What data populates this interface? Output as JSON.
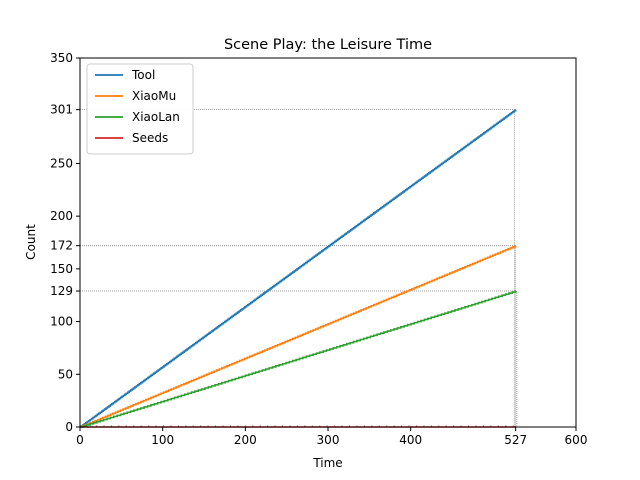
{
  "chart_data": {
    "type": "line",
    "title": "Scene Play: the Leisure Time",
    "xlabel": "Time",
    "ylabel": "Count",
    "xlim": [
      0,
      600
    ],
    "ylim": [
      0,
      350
    ],
    "xticks": [
      0,
      100,
      200,
      300,
      400,
      527,
      600
    ],
    "yticks": [
      0,
      50,
      100,
      129,
      150,
      172,
      200,
      250,
      301,
      350
    ],
    "grid": false,
    "legend_position": "top-left",
    "reference_lines": [
      {
        "y": 301,
        "x_end": 527
      },
      {
        "y": 172,
        "x_end": 527
      },
      {
        "y": 129,
        "x_end": 527
      }
    ],
    "series": [
      {
        "name": "Tool",
        "color": "#1f77b4",
        "x": [
          0,
          527
        ],
        "y": [
          0,
          301
        ],
        "style": "step"
      },
      {
        "name": "XiaoMu",
        "color": "#ff7f0e",
        "x": [
          0,
          527
        ],
        "y": [
          0,
          172
        ],
        "style": "step"
      },
      {
        "name": "XiaoLan",
        "color": "#2ca02c",
        "x": [
          0,
          527
        ],
        "y": [
          0,
          129
        ],
        "style": "step"
      },
      {
        "name": "Seeds",
        "color": "#d62728",
        "x": [
          0,
          527
        ],
        "y": [
          0,
          0
        ],
        "style": "line"
      }
    ]
  }
}
